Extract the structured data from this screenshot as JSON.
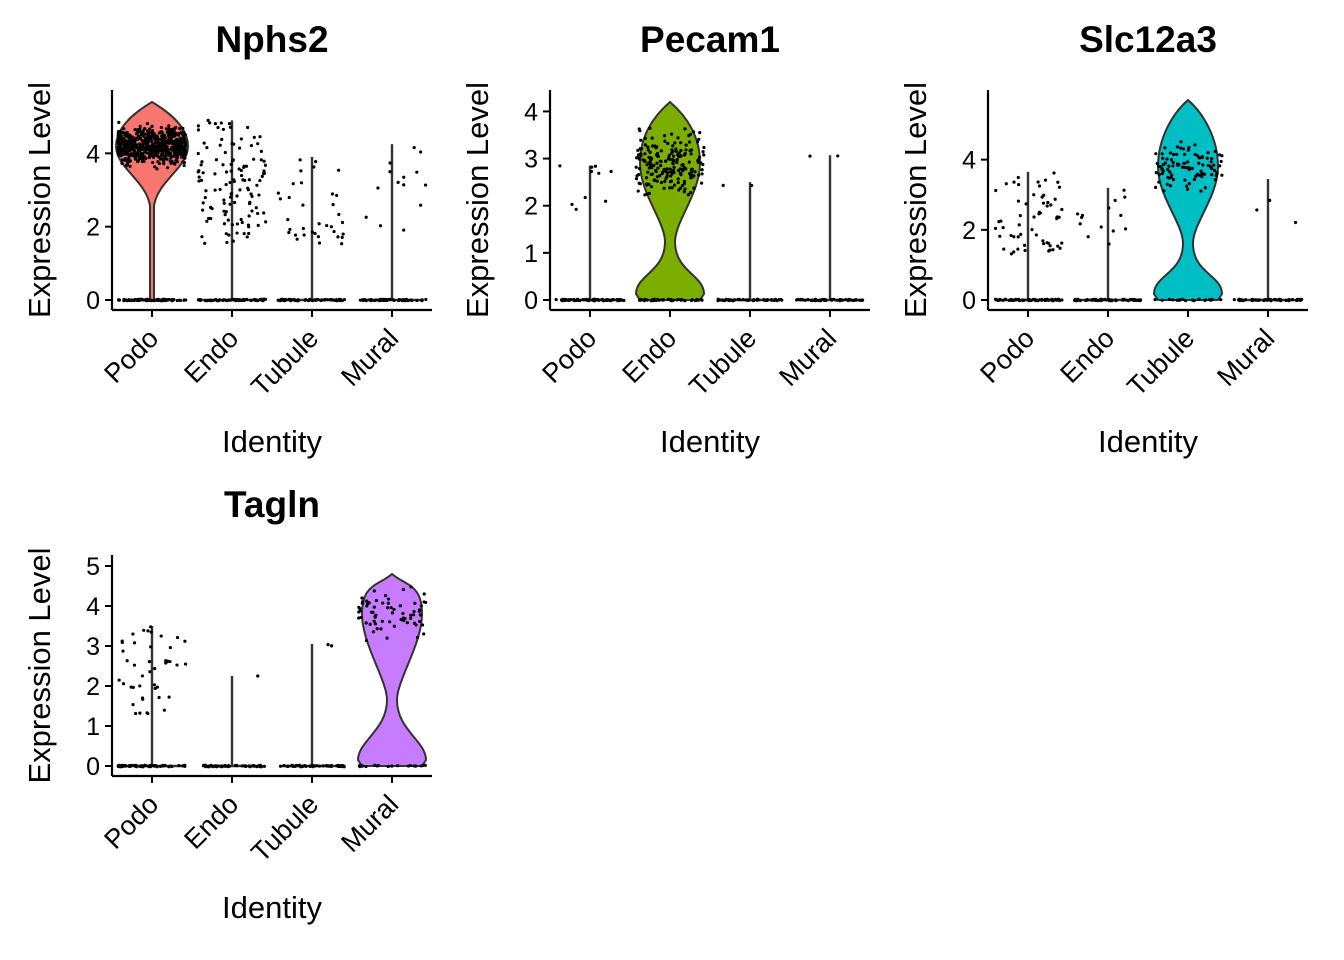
{
  "figure": {
    "background": "#ffffff"
  },
  "chart_data": [
    {
      "type": "violin",
      "title": "Nphs2",
      "xlabel": "Identity",
      "ylabel": "Expression Level",
      "categories": [
        "Podo",
        "Endo",
        "Tubule",
        "Mural"
      ],
      "yticks": [
        0,
        2,
        4
      ],
      "ylim": [
        0,
        5.4
      ],
      "colors": [
        "#F8766D",
        "#7CAE00",
        "#00BFC4",
        "#C77CFF"
      ],
      "series": [
        {
          "category": "Podo",
          "max": 5.4,
          "dominant": "high",
          "highCenter": 4.2,
          "nonzero_points": 620,
          "zero_points": 80
        },
        {
          "category": "Endo",
          "max": 4.9,
          "dominant": "zero",
          "nonzero_points": 120,
          "nonzero_range": [
            1.5,
            4.9
          ],
          "zero_points": 60
        },
        {
          "category": "Tubule",
          "max": 3.9,
          "dominant": "zero",
          "nonzero_points": 35,
          "nonzero_range": [
            1.4,
            3.9
          ],
          "zero_points": 60
        },
        {
          "category": "Mural",
          "max": 4.25,
          "dominant": "zero",
          "nonzero_points": 14,
          "nonzero_range": [
            1.9,
            4.25
          ],
          "zero_points": 50
        }
      ]
    },
    {
      "type": "violin",
      "title": "Pecam1",
      "xlabel": "Identity",
      "ylabel": "Expression Level",
      "categories": [
        "Podo",
        "Endo",
        "Tubule",
        "Mural"
      ],
      "yticks": [
        0,
        1,
        2,
        3,
        4
      ],
      "ylim": [
        0,
        4.2
      ],
      "colors": [
        "#F8766D",
        "#7CAE00",
        "#00BFC4",
        "#C77CFF"
      ],
      "series": [
        {
          "category": "Podo",
          "max": 2.85,
          "dominant": "zero",
          "nonzero_points": 10,
          "nonzero_range": [
            1.9,
            2.85
          ],
          "zero_points": 60
        },
        {
          "category": "Endo",
          "max": 4.2,
          "dominant": "bimodal",
          "highCenter": 2.9,
          "nonzero_points": 200,
          "nonzero_range": [
            1.5,
            4.2
          ],
          "zero_points": 40
        },
        {
          "category": "Tubule",
          "max": 2.5,
          "dominant": "zero",
          "nonzero_points": 2,
          "nonzero_range": [
            2.4,
            2.5
          ],
          "zero_points": 50
        },
        {
          "category": "Mural",
          "max": 3.07,
          "dominant": "zero",
          "nonzero_points": 2,
          "nonzero_range": [
            3.05,
            3.07
          ],
          "zero_points": 50
        }
      ]
    },
    {
      "type": "violin",
      "title": "Slc12a3",
      "xlabel": "Identity",
      "ylabel": "Expression Level",
      "categories": [
        "Podo",
        "Endo",
        "Tubule",
        "Mural"
      ],
      "yticks": [
        0,
        2,
        4
      ],
      "ylim": [
        0,
        5.7
      ],
      "colors": [
        "#F8766D",
        "#7CAE00",
        "#00BFC4",
        "#C77CFF"
      ],
      "series": [
        {
          "category": "Podo",
          "max": 3.65,
          "dominant": "zero",
          "nonzero_points": 60,
          "nonzero_range": [
            1.3,
            3.65
          ],
          "zero_points": 60
        },
        {
          "category": "Endo",
          "max": 3.2,
          "dominant": "zero",
          "nonzero_points": 14,
          "nonzero_range": [
            1.5,
            3.2
          ],
          "zero_points": 60
        },
        {
          "category": "Tubule",
          "max": 5.7,
          "dominant": "bimodal",
          "highCenter": 3.8,
          "nonzero_points": 100,
          "nonzero_range": [
            1.7,
            5.7
          ],
          "zero_points": 20
        },
        {
          "category": "Mural",
          "max": 3.45,
          "dominant": "zero",
          "nonzero_points": 3,
          "nonzero_range": [
            2.1,
            3.45
          ],
          "zero_points": 50
        }
      ]
    },
    {
      "type": "violin",
      "title": "Tagln",
      "xlabel": "Identity",
      "ylabel": "Expression Level",
      "categories": [
        "Podo",
        "Endo",
        "Tubule",
        "Mural"
      ],
      "yticks": [
        0,
        1,
        2,
        3,
        4,
        5
      ],
      "ylim": [
        0,
        5.0
      ],
      "colors": [
        "#F8766D",
        "#7CAE00",
        "#00BFC4",
        "#C77CFF"
      ],
      "series": [
        {
          "category": "Podo",
          "max": 3.5,
          "dominant": "zero",
          "nonzero_points": 45,
          "nonzero_range": [
            1.3,
            3.5
          ],
          "zero_points": 60
        },
        {
          "category": "Endo",
          "max": 2.25,
          "dominant": "zero",
          "nonzero_points": 1,
          "nonzero_range": [
            2.25,
            2.25
          ],
          "zero_points": 50
        },
        {
          "category": "Tubule",
          "max": 3.05,
          "dominant": "zero",
          "nonzero_points": 2,
          "nonzero_range": [
            2.9,
            3.05
          ],
          "zero_points": 50
        },
        {
          "category": "Mural",
          "max": 4.8,
          "dominant": "bimodal",
          "highCenter": 3.8,
          "nonzero_points": 70,
          "nonzero_range": [
            1.6,
            4.8
          ],
          "zero_points": 20
        }
      ]
    }
  ]
}
